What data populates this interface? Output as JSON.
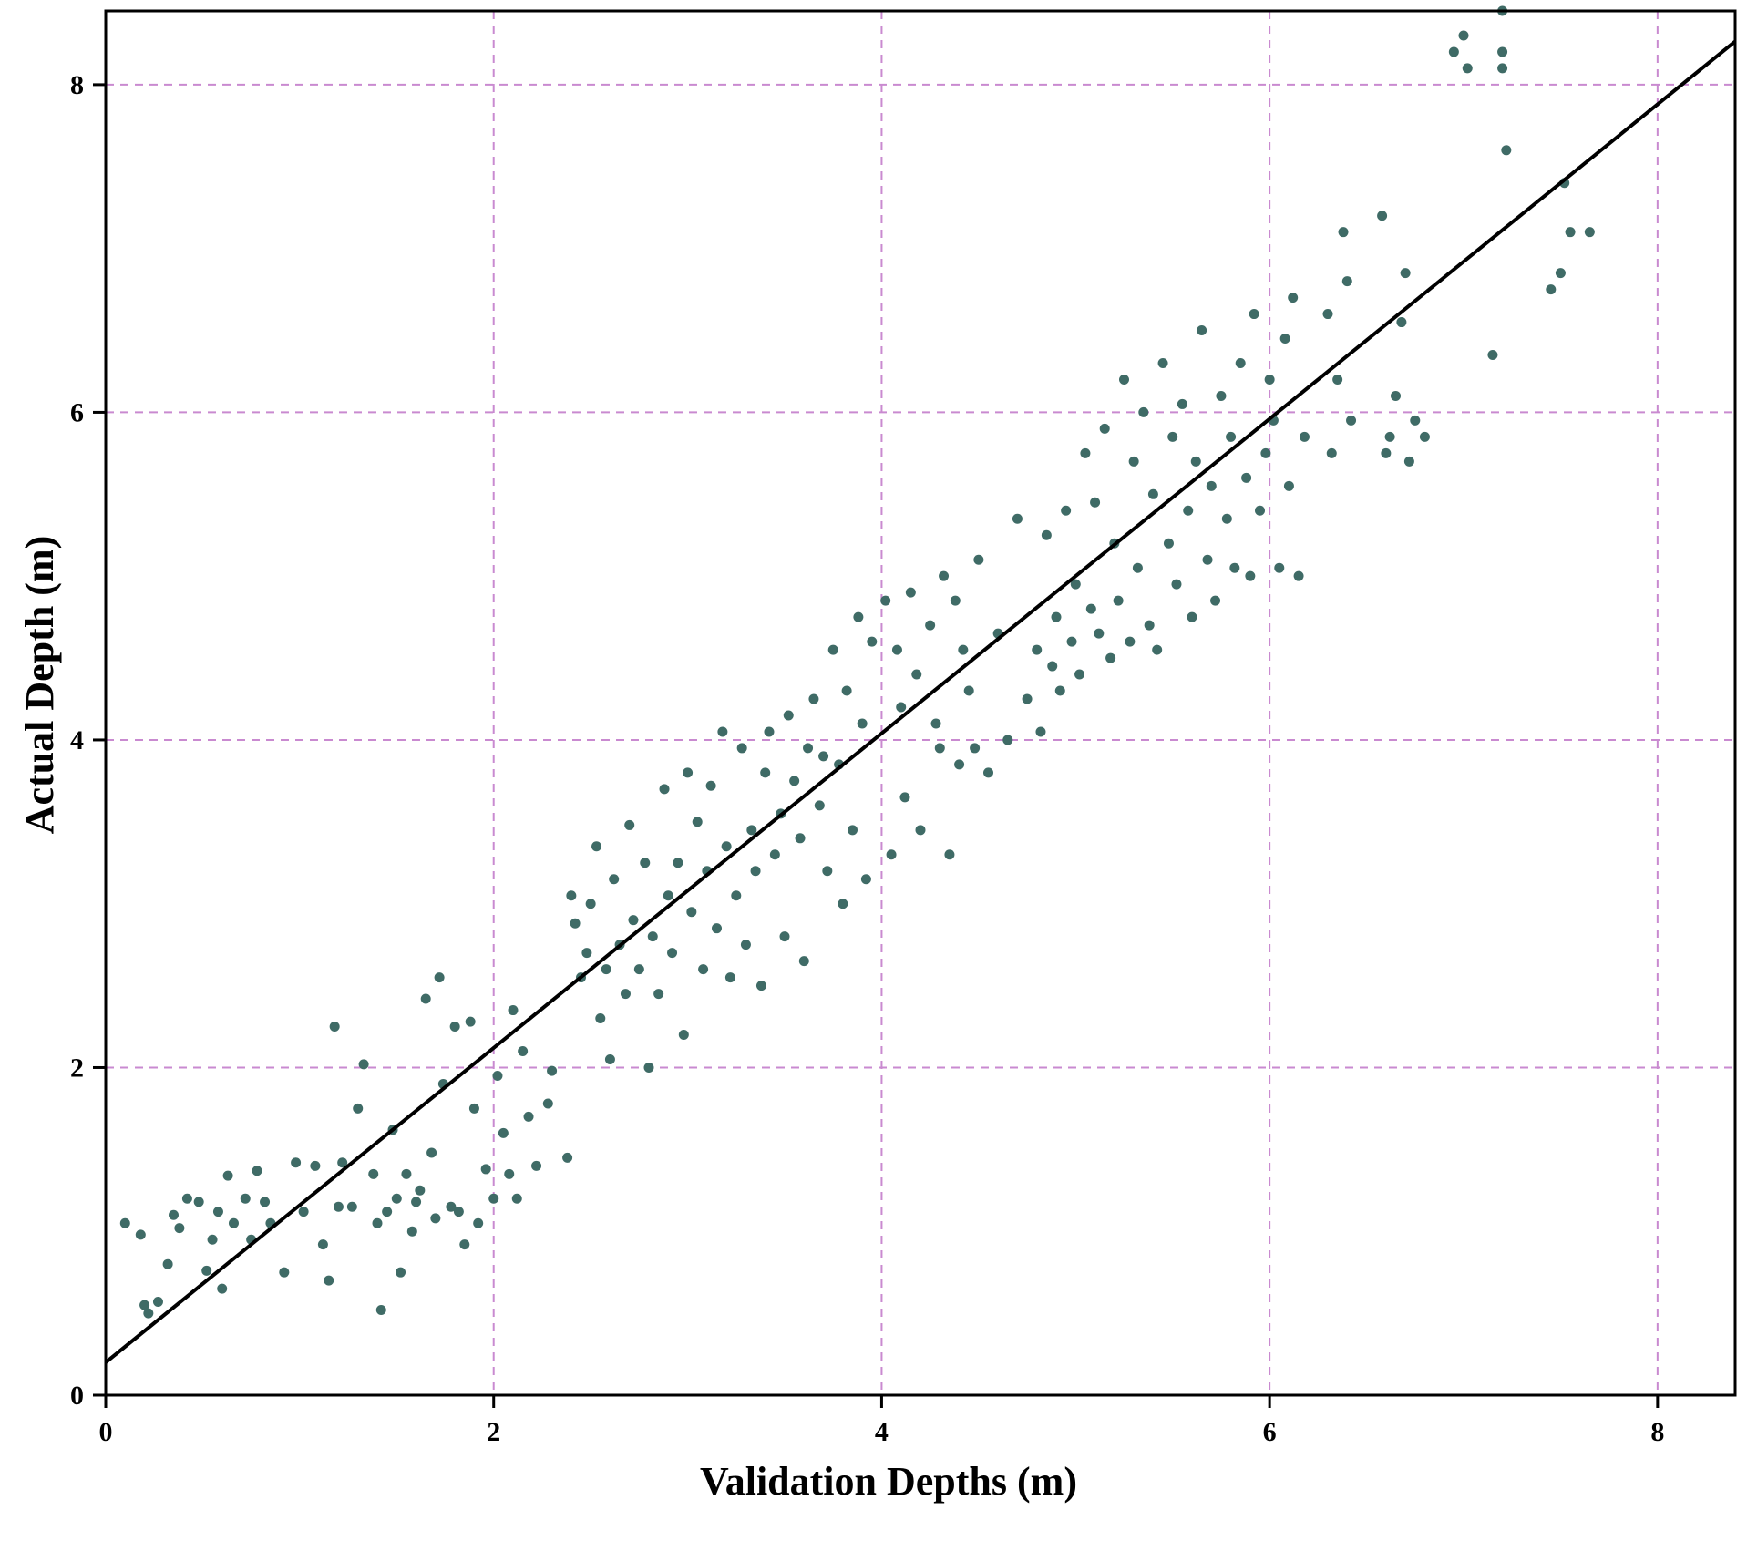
{
  "chart_data": {
    "type": "scatter",
    "xlabel": "Validation Depths (m)",
    "ylabel": "Actual Depth (m)",
    "xlim": [
      0,
      8.4
    ],
    "ylim": [
      0,
      8.45
    ],
    "xticks": [
      0,
      2,
      4,
      6,
      8
    ],
    "yticks": [
      0,
      2,
      4,
      6,
      8
    ],
    "xtick_labels": [
      "0",
      "2",
      "4",
      "6",
      "8"
    ],
    "ytick_labels": [
      "0",
      "2",
      "4",
      "6",
      "8"
    ],
    "grid": true,
    "grid_color": "#c98ad0",
    "point_color": "#3f6b66",
    "fit_line": {
      "slope": 0.96,
      "intercept": 0.2,
      "x_range": [
        0,
        8.4
      ],
      "color": "#000000"
    },
    "series": [
      {
        "points": [
          [
            0.1,
            1.05
          ],
          [
            0.18,
            0.98
          ],
          [
            0.2,
            0.55
          ],
          [
            0.22,
            0.5
          ],
          [
            0.27,
            0.57
          ],
          [
            0.32,
            0.8
          ],
          [
            0.35,
            1.1
          ],
          [
            0.38,
            1.02
          ],
          [
            0.42,
            1.2
          ],
          [
            0.48,
            1.18
          ],
          [
            0.52,
            0.76
          ],
          [
            0.55,
            0.95
          ],
          [
            0.58,
            1.12
          ],
          [
            0.6,
            0.65
          ],
          [
            0.63,
            1.34
          ],
          [
            0.66,
            1.05
          ],
          [
            0.72,
            1.2
          ],
          [
            0.75,
            0.95
          ],
          [
            0.78,
            1.37
          ],
          [
            0.82,
            1.18
          ],
          [
            0.85,
            1.05
          ],
          [
            0.92,
            0.75
          ],
          [
            0.98,
            1.42
          ],
          [
            1.02,
            1.12
          ],
          [
            1.08,
            1.4
          ],
          [
            1.12,
            0.92
          ],
          [
            1.15,
            0.7
          ],
          [
            1.18,
            2.25
          ],
          [
            1.2,
            1.15
          ],
          [
            1.22,
            1.42
          ],
          [
            1.27,
            1.15
          ],
          [
            1.3,
            1.75
          ],
          [
            1.33,
            2.02
          ],
          [
            1.38,
            1.35
          ],
          [
            1.4,
            1.05
          ],
          [
            1.42,
            0.52
          ],
          [
            1.45,
            1.12
          ],
          [
            1.48,
            1.62
          ],
          [
            1.5,
            1.2
          ],
          [
            1.52,
            0.75
          ],
          [
            1.55,
            1.35
          ],
          [
            1.58,
            1.0
          ],
          [
            1.6,
            1.18
          ],
          [
            1.62,
            1.25
          ],
          [
            1.65,
            2.42
          ],
          [
            1.68,
            1.48
          ],
          [
            1.7,
            1.08
          ],
          [
            1.72,
            2.55
          ],
          [
            1.74,
            1.9
          ],
          [
            1.78,
            1.15
          ],
          [
            1.8,
            2.25
          ],
          [
            1.82,
            1.12
          ],
          [
            1.85,
            0.92
          ],
          [
            1.88,
            2.28
          ],
          [
            1.9,
            1.75
          ],
          [
            1.92,
            1.05
          ],
          [
            1.96,
            1.38
          ],
          [
            2.0,
            1.2
          ],
          [
            2.02,
            1.95
          ],
          [
            2.05,
            1.6
          ],
          [
            2.08,
            1.35
          ],
          [
            2.1,
            2.35
          ],
          [
            2.12,
            1.2
          ],
          [
            2.15,
            2.1
          ],
          [
            2.18,
            1.7
          ],
          [
            2.22,
            1.4
          ],
          [
            2.28,
            1.78
          ],
          [
            2.3,
            1.98
          ],
          [
            2.38,
            1.45
          ],
          [
            2.4,
            3.05
          ],
          [
            2.42,
            2.88
          ],
          [
            2.45,
            2.55
          ],
          [
            2.48,
            2.7
          ],
          [
            2.5,
            3.0
          ],
          [
            2.53,
            3.35
          ],
          [
            2.55,
            2.3
          ],
          [
            2.58,
            2.6
          ],
          [
            2.6,
            2.05
          ],
          [
            2.62,
            3.15
          ],
          [
            2.65,
            2.75
          ],
          [
            2.68,
            2.45
          ],
          [
            2.7,
            3.48
          ],
          [
            2.72,
            2.9
          ],
          [
            2.75,
            2.6
          ],
          [
            2.78,
            3.25
          ],
          [
            2.8,
            2.0
          ],
          [
            2.82,
            2.8
          ],
          [
            2.85,
            2.45
          ],
          [
            2.88,
            3.7
          ],
          [
            2.9,
            3.05
          ],
          [
            2.92,
            2.7
          ],
          [
            2.95,
            3.25
          ],
          [
            2.98,
            2.2
          ],
          [
            3.0,
            3.8
          ],
          [
            3.02,
            2.95
          ],
          [
            3.05,
            3.5
          ],
          [
            3.08,
            2.6
          ],
          [
            3.1,
            3.2
          ],
          [
            3.12,
            3.72
          ],
          [
            3.15,
            2.85
          ],
          [
            3.18,
            4.05
          ],
          [
            3.2,
            3.35
          ],
          [
            3.22,
            2.55
          ],
          [
            3.25,
            3.05
          ],
          [
            3.28,
            3.95
          ],
          [
            3.3,
            2.75
          ],
          [
            3.33,
            3.45
          ],
          [
            3.35,
            3.2
          ],
          [
            3.38,
            2.5
          ],
          [
            3.4,
            3.8
          ],
          [
            3.42,
            4.05
          ],
          [
            3.45,
            3.3
          ],
          [
            3.48,
            3.55
          ],
          [
            3.5,
            2.8
          ],
          [
            3.52,
            4.15
          ],
          [
            3.55,
            3.75
          ],
          [
            3.58,
            3.4
          ],
          [
            3.6,
            2.65
          ],
          [
            3.62,
            3.95
          ],
          [
            3.65,
            4.25
          ],
          [
            3.68,
            3.6
          ],
          [
            3.7,
            3.9
          ],
          [
            3.72,
            3.2
          ],
          [
            3.75,
            4.55
          ],
          [
            3.78,
            3.85
          ],
          [
            3.8,
            3.0
          ],
          [
            3.82,
            4.3
          ],
          [
            3.85,
            3.45
          ],
          [
            3.88,
            4.75
          ],
          [
            3.9,
            4.1
          ],
          [
            3.92,
            3.15
          ],
          [
            3.95,
            4.6
          ],
          [
            4.02,
            4.85
          ],
          [
            4.05,
            3.3
          ],
          [
            4.08,
            4.55
          ],
          [
            4.1,
            4.2
          ],
          [
            4.12,
            3.65
          ],
          [
            4.15,
            4.9
          ],
          [
            4.18,
            4.4
          ],
          [
            4.2,
            3.45
          ],
          [
            4.25,
            4.7
          ],
          [
            4.28,
            4.1
          ],
          [
            4.3,
            3.95
          ],
          [
            4.32,
            5.0
          ],
          [
            4.35,
            3.3
          ],
          [
            4.38,
            4.85
          ],
          [
            4.4,
            3.85
          ],
          [
            4.42,
            4.55
          ],
          [
            4.45,
            4.3
          ],
          [
            4.48,
            3.95
          ],
          [
            4.5,
            5.1
          ],
          [
            4.55,
            3.8
          ],
          [
            4.6,
            4.65
          ],
          [
            4.65,
            4.0
          ],
          [
            4.7,
            5.35
          ],
          [
            4.75,
            4.25
          ],
          [
            4.8,
            4.55
          ],
          [
            4.82,
            4.05
          ],
          [
            4.85,
            5.25
          ],
          [
            4.88,
            4.45
          ],
          [
            4.9,
            4.75
          ],
          [
            4.92,
            4.3
          ],
          [
            4.95,
            5.4
          ],
          [
            4.98,
            4.6
          ],
          [
            5.0,
            4.95
          ],
          [
            5.02,
            4.4
          ],
          [
            5.05,
            5.75
          ],
          [
            5.08,
            4.8
          ],
          [
            5.1,
            5.45
          ],
          [
            5.12,
            4.65
          ],
          [
            5.15,
            5.9
          ],
          [
            5.18,
            4.5
          ],
          [
            5.2,
            5.2
          ],
          [
            5.22,
            4.85
          ],
          [
            5.25,
            6.2
          ],
          [
            5.28,
            4.6
          ],
          [
            5.3,
            5.7
          ],
          [
            5.32,
            5.05
          ],
          [
            5.35,
            6.0
          ],
          [
            5.38,
            4.7
          ],
          [
            5.4,
            5.5
          ],
          [
            5.42,
            4.55
          ],
          [
            5.45,
            6.3
          ],
          [
            5.48,
            5.2
          ],
          [
            5.5,
            5.85
          ],
          [
            5.52,
            4.95
          ],
          [
            5.55,
            6.05
          ],
          [
            5.58,
            5.4
          ],
          [
            5.6,
            4.75
          ],
          [
            5.62,
            5.7
          ],
          [
            5.65,
            6.5
          ],
          [
            5.68,
            5.1
          ],
          [
            5.7,
            5.55
          ],
          [
            5.72,
            4.85
          ],
          [
            5.75,
            6.1
          ],
          [
            5.78,
            5.35
          ],
          [
            5.8,
            5.85
          ],
          [
            5.82,
            5.05
          ],
          [
            5.85,
            6.3
          ],
          [
            5.88,
            5.6
          ],
          [
            5.9,
            5.0
          ],
          [
            5.92,
            6.6
          ],
          [
            5.95,
            5.4
          ],
          [
            5.98,
            5.75
          ],
          [
            6.0,
            6.2
          ],
          [
            6.02,
            5.95
          ],
          [
            6.05,
            5.05
          ],
          [
            6.08,
            6.45
          ],
          [
            6.1,
            5.55
          ],
          [
            6.12,
            6.7
          ],
          [
            6.15,
            5.0
          ],
          [
            6.18,
            5.85
          ],
          [
            6.3,
            6.6
          ],
          [
            6.32,
            5.75
          ],
          [
            6.35,
            6.2
          ],
          [
            6.38,
            7.1
          ],
          [
            6.4,
            6.8
          ],
          [
            6.42,
            5.95
          ],
          [
            6.58,
            7.2
          ],
          [
            6.6,
            5.75
          ],
          [
            6.62,
            5.85
          ],
          [
            6.65,
            6.1
          ],
          [
            6.68,
            6.55
          ],
          [
            6.7,
            6.85
          ],
          [
            6.72,
            5.7
          ],
          [
            6.75,
            5.95
          ],
          [
            6.8,
            5.85
          ],
          [
            6.95,
            8.2
          ],
          [
            7.0,
            8.3
          ],
          [
            7.02,
            8.1
          ],
          [
            7.15,
            6.35
          ],
          [
            7.2,
            8.45
          ],
          [
            7.2,
            8.2
          ],
          [
            7.2,
            8.1
          ],
          [
            7.22,
            7.6
          ],
          [
            7.45,
            6.75
          ],
          [
            7.5,
            6.85
          ],
          [
            7.52,
            7.4
          ],
          [
            7.55,
            7.1
          ],
          [
            7.65,
            7.1
          ]
        ]
      }
    ]
  }
}
